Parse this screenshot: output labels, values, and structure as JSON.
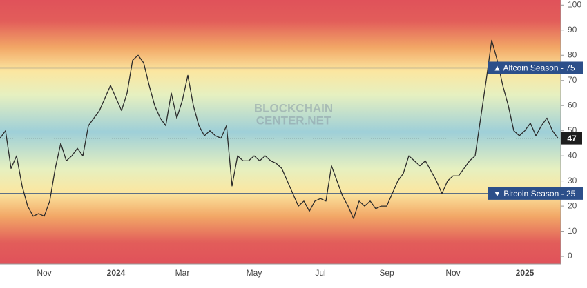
{
  "chart_data": {
    "type": "line",
    "watermark": [
      "BLOCKCHAIN",
      "CENTER.NET"
    ],
    "categories": [
      null,
      null,
      null,
      null,
      null,
      null,
      null,
      null,
      "Nov",
      null,
      null,
      null,
      null,
      null,
      null,
      null,
      null,
      null,
      null,
      null,
      null,
      "2024",
      null,
      null,
      null,
      null,
      null,
      null,
      null,
      null,
      null,
      null,
      null,
      "Mar",
      null,
      null,
      null,
      null,
      null,
      null,
      null,
      null,
      null,
      null,
      null,
      null,
      "May",
      null,
      null,
      null,
      null,
      null,
      null,
      null,
      null,
      null,
      null,
      null,
      "Jul",
      null,
      null,
      null,
      null,
      null,
      null,
      null,
      null,
      null,
      null,
      null,
      "Sep",
      null,
      null,
      null,
      null,
      null,
      null,
      null,
      null,
      null,
      null,
      null,
      "Nov",
      null,
      null,
      null,
      null,
      null,
      null,
      null,
      null,
      null,
      null,
      null,
      null,
      "2025",
      null,
      null,
      null,
      null,
      null,
      null
    ],
    "values": [
      47,
      50,
      35,
      40,
      28,
      20,
      16,
      17,
      16,
      22,
      35,
      45,
      38,
      40,
      43,
      40,
      52,
      55,
      58,
      63,
      68,
      63,
      58,
      65,
      78,
      80,
      77,
      68,
      60,
      55,
      52,
      65,
      55,
      62,
      72,
      60,
      52,
      48,
      50,
      48,
      47,
      52,
      28,
      40,
      38,
      38,
      40,
      38,
      40,
      38,
      37,
      35,
      30,
      25,
      20,
      22,
      18,
      22,
      23,
      22,
      36,
      30,
      24,
      20,
      15,
      22,
      20,
      22,
      19,
      20,
      20,
      25,
      30,
      33,
      40,
      38,
      36,
      38,
      34,
      30,
      25,
      30,
      32,
      32,
      35,
      38,
      40,
      55,
      70,
      86,
      78,
      68,
      60,
      50,
      48,
      50,
      53,
      48,
      52,
      55,
      50,
      47
    ],
    "color": "#2b2b2b",
    "ylim": [
      -3,
      102
    ],
    "yticks": [
      0,
      10,
      20,
      30,
      40,
      50,
      60,
      70,
      80,
      90,
      100
    ],
    "reference_lines": [
      {
        "value": 75,
        "label": "▲ Altcoin Season - 75"
      },
      {
        "value": 25,
        "label": "▼ Bitcoin Season - 25"
      }
    ],
    "current": 47
  }
}
